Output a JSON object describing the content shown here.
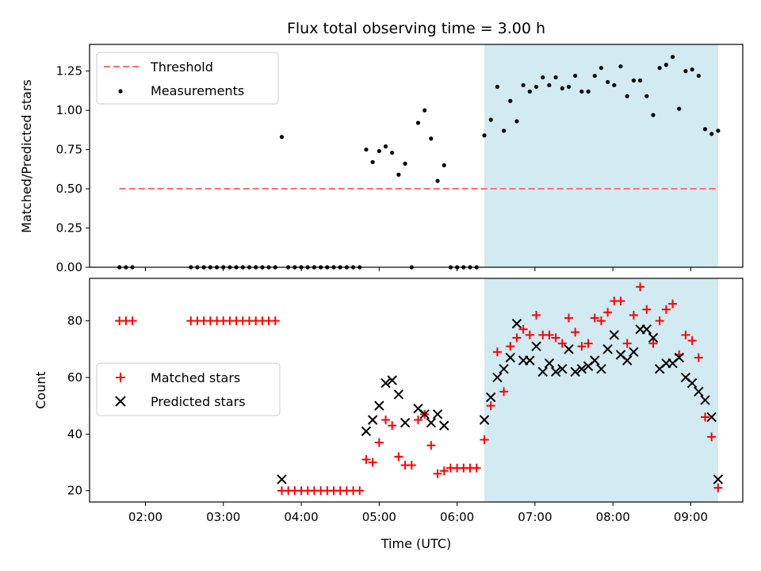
{
  "figure": {
    "title": "Flux total observing time = 3.00 h",
    "xlabel": "Time (UTC)",
    "x_ticks": [
      "02:00",
      "03:00",
      "04:00",
      "05:00",
      "06:00",
      "07:00",
      "08:00",
      "09:00"
    ]
  },
  "chart_data": [
    {
      "type": "scatter",
      "ylabel": "Matched/Predicted stars",
      "xlim": [
        "01:17",
        "09:40"
      ],
      "ylim": [
        0,
        1.42
      ],
      "y_ticks": [
        "0.00",
        "0.25",
        "0.50",
        "0.75",
        "1.00",
        "1.25"
      ],
      "legend": {
        "placement": "top-left",
        "entries": [
          "Threshold",
          "Measurements"
        ]
      },
      "shaded_region": {
        "x_start": "06:21",
        "x_end": "09:21",
        "color": "#add8e6"
      },
      "threshold": {
        "name": "Threshold",
        "y": 0.5,
        "x_start": "01:40",
        "x_end": "09:21",
        "color": "#ff7070"
      },
      "series": [
        {
          "name": "Measurements",
          "color": "#000000",
          "points": [
            [
              "01:40",
              0
            ],
            [
              "01:45",
              0
            ],
            [
              "01:50",
              0
            ],
            [
              "02:35",
              0
            ],
            [
              "02:40",
              0
            ],
            [
              "02:45",
              0
            ],
            [
              "02:50",
              0
            ],
            [
              "02:55",
              0
            ],
            [
              "03:00",
              0
            ],
            [
              "03:05",
              0
            ],
            [
              "03:10",
              0
            ],
            [
              "03:15",
              0
            ],
            [
              "03:20",
              0
            ],
            [
              "03:25",
              0
            ],
            [
              "03:30",
              0
            ],
            [
              "03:35",
              0
            ],
            [
              "03:40",
              0
            ],
            [
              "03:45",
              0.83
            ],
            [
              "03:50",
              0
            ],
            [
              "03:55",
              0
            ],
            [
              "04:00",
              0
            ],
            [
              "04:05",
              0
            ],
            [
              "04:10",
              0
            ],
            [
              "04:15",
              0
            ],
            [
              "04:20",
              0
            ],
            [
              "04:25",
              0
            ],
            [
              "04:30",
              0
            ],
            [
              "04:35",
              0
            ],
            [
              "04:40",
              0
            ],
            [
              "04:45",
              0
            ],
            [
              "04:50",
              0.75
            ],
            [
              "04:55",
              0.67
            ],
            [
              "05:00",
              0.74
            ],
            [
              "05:05",
              0.77
            ],
            [
              "05:10",
              0.73
            ],
            [
              "05:15",
              0.59
            ],
            [
              "05:20",
              0.66
            ],
            [
              "05:25",
              0
            ],
            [
              "05:30",
              0.92
            ],
            [
              "05:35",
              1.0
            ],
            [
              "05:40",
              0.82
            ],
            [
              "05:45",
              0.55
            ],
            [
              "05:50",
              0.65
            ],
            [
              "05:55",
              0
            ],
            [
              "06:00",
              0
            ],
            [
              "06:05",
              0
            ],
            [
              "06:10",
              0
            ],
            [
              "06:15",
              0
            ],
            [
              "06:21",
              0.84
            ],
            [
              "06:26",
              0.94
            ],
            [
              "06:31",
              1.15
            ],
            [
              "06:36",
              0.87
            ],
            [
              "06:41",
              1.06
            ],
            [
              "06:46",
              0.93
            ],
            [
              "06:51",
              1.16
            ],
            [
              "06:56",
              1.12
            ],
            [
              "07:01",
              1.15
            ],
            [
              "07:06",
              1.21
            ],
            [
              "07:11",
              1.16
            ],
            [
              "07:16",
              1.21
            ],
            [
              "07:21",
              1.14
            ],
            [
              "07:26",
              1.15
            ],
            [
              "07:31",
              1.22
            ],
            [
              "07:36",
              1.12
            ],
            [
              "07:41",
              1.12
            ],
            [
              "07:46",
              1.22
            ],
            [
              "07:51",
              1.27
            ],
            [
              "07:56",
              1.18
            ],
            [
              "08:01",
              1.16
            ],
            [
              "08:06",
              1.28
            ],
            [
              "08:11",
              1.09
            ],
            [
              "08:16",
              1.19
            ],
            [
              "08:21",
              1.19
            ],
            [
              "08:26",
              1.09
            ],
            [
              "08:31",
              0.97
            ],
            [
              "08:36",
              1.27
            ],
            [
              "08:41",
              1.29
            ],
            [
              "08:46",
              1.34
            ],
            [
              "08:51",
              1.01
            ],
            [
              "08:56",
              1.25
            ],
            [
              "09:01",
              1.26
            ],
            [
              "09:06",
              1.22
            ],
            [
              "09:11",
              0.88
            ],
            [
              "09:16",
              0.85
            ],
            [
              "09:21",
              0.87
            ]
          ]
        }
      ]
    },
    {
      "type": "scatter",
      "ylabel": "Count",
      "xlim": [
        "01:17",
        "09:40"
      ],
      "ylim": [
        16,
        95
      ],
      "y_ticks": [
        "20",
        "40",
        "60",
        "80"
      ],
      "legend": {
        "placement": "center-left",
        "entries": [
          "Matched stars",
          "Predicted stars"
        ]
      },
      "shaded_region": {
        "x_start": "06:21",
        "x_end": "09:21",
        "color": "#add8e6"
      },
      "series": [
        {
          "name": "Matched stars",
          "marker": "plus",
          "color": "#ff0000",
          "points": [
            [
              "01:40",
              80
            ],
            [
              "01:45",
              80
            ],
            [
              "01:50",
              80
            ],
            [
              "02:35",
              80
            ],
            [
              "02:40",
              80
            ],
            [
              "02:45",
              80
            ],
            [
              "02:50",
              80
            ],
            [
              "02:55",
              80
            ],
            [
              "03:00",
              80
            ],
            [
              "03:05",
              80
            ],
            [
              "03:10",
              80
            ],
            [
              "03:15",
              80
            ],
            [
              "03:20",
              80
            ],
            [
              "03:25",
              80
            ],
            [
              "03:30",
              80
            ],
            [
              "03:35",
              80
            ],
            [
              "03:40",
              80
            ],
            [
              "03:45",
              20
            ],
            [
              "03:50",
              20
            ],
            [
              "03:55",
              20
            ],
            [
              "04:00",
              20
            ],
            [
              "04:05",
              20
            ],
            [
              "04:10",
              20
            ],
            [
              "04:15",
              20
            ],
            [
              "04:20",
              20
            ],
            [
              "04:25",
              20
            ],
            [
              "04:30",
              20
            ],
            [
              "04:35",
              20
            ],
            [
              "04:40",
              20
            ],
            [
              "04:45",
              20
            ],
            [
              "04:50",
              31
            ],
            [
              "04:55",
              30
            ],
            [
              "05:00",
              37
            ],
            [
              "05:05",
              45
            ],
            [
              "05:10",
              43
            ],
            [
              "05:15",
              32
            ],
            [
              "05:20",
              29
            ],
            [
              "05:25",
              29
            ],
            [
              "05:30",
              45
            ],
            [
              "05:35",
              47
            ],
            [
              "05:40",
              36
            ],
            [
              "05:45",
              26
            ],
            [
              "05:50",
              27
            ],
            [
              "05:55",
              28
            ],
            [
              "06:00",
              28
            ],
            [
              "06:05",
              28
            ],
            [
              "06:10",
              28
            ],
            [
              "06:15",
              28
            ],
            [
              "06:21",
              38
            ],
            [
              "06:26",
              50
            ],
            [
              "06:31",
              69
            ],
            [
              "06:36",
              55
            ],
            [
              "06:41",
              71
            ],
            [
              "06:46",
              74
            ],
            [
              "06:51",
              77
            ],
            [
              "06:56",
              75
            ],
            [
              "07:01",
              82
            ],
            [
              "07:06",
              75
            ],
            [
              "07:11",
              75
            ],
            [
              "07:16",
              74
            ],
            [
              "07:21",
              72
            ],
            [
              "07:26",
              81
            ],
            [
              "07:31",
              76
            ],
            [
              "07:36",
              71
            ],
            [
              "07:41",
              72
            ],
            [
              "07:46",
              81
            ],
            [
              "07:51",
              80
            ],
            [
              "07:56",
              83
            ],
            [
              "08:01",
              87
            ],
            [
              "08:06",
              87
            ],
            [
              "08:11",
              72
            ],
            [
              "08:16",
              82
            ],
            [
              "08:21",
              92
            ],
            [
              "08:26",
              84
            ],
            [
              "08:31",
              72
            ],
            [
              "08:36",
              80
            ],
            [
              "08:41",
              84
            ],
            [
              "08:46",
              86
            ],
            [
              "08:51",
              68
            ],
            [
              "08:56",
              75
            ],
            [
              "09:01",
              73
            ],
            [
              "09:06",
              67
            ],
            [
              "09:11",
              46
            ],
            [
              "09:16",
              39
            ],
            [
              "09:21",
              21
            ]
          ]
        },
        {
          "name": "Predicted stars",
          "marker": "x",
          "color": "#000000",
          "points": [
            [
              "03:45",
              24
            ],
            [
              "04:50",
              41
            ],
            [
              "04:55",
              45
            ],
            [
              "05:00",
              50
            ],
            [
              "05:05",
              58
            ],
            [
              "05:10",
              59
            ],
            [
              "05:15",
              54
            ],
            [
              "05:20",
              44
            ],
            [
              "05:30",
              49
            ],
            [
              "05:35",
              47
            ],
            [
              "05:40",
              44
            ],
            [
              "05:45",
              47
            ],
            [
              "05:50",
              43
            ],
            [
              "06:21",
              45
            ],
            [
              "06:26",
              53
            ],
            [
              "06:31",
              60
            ],
            [
              "06:36",
              63
            ],
            [
              "06:41",
              67
            ],
            [
              "06:46",
              79
            ],
            [
              "06:51",
              66
            ],
            [
              "06:56",
              66
            ],
            [
              "07:01",
              71
            ],
            [
              "07:06",
              62
            ],
            [
              "07:11",
              65
            ],
            [
              "07:16",
              62
            ],
            [
              "07:21",
              63
            ],
            [
              "07:26",
              70
            ],
            [
              "07:31",
              62
            ],
            [
              "07:36",
              63
            ],
            [
              "07:41",
              64
            ],
            [
              "07:46",
              66
            ],
            [
              "07:51",
              63
            ],
            [
              "07:56",
              70
            ],
            [
              "08:01",
              75
            ],
            [
              "08:06",
              68
            ],
            [
              "08:11",
              66
            ],
            [
              "08:16",
              69
            ],
            [
              "08:21",
              77
            ],
            [
              "08:26",
              77
            ],
            [
              "08:31",
              74
            ],
            [
              "08:36",
              63
            ],
            [
              "08:41",
              65
            ],
            [
              "08:46",
              65
            ],
            [
              "08:51",
              67
            ],
            [
              "08:56",
              60
            ],
            [
              "09:01",
              58
            ],
            [
              "09:06",
              55
            ],
            [
              "09:11",
              52
            ],
            [
              "09:16",
              46
            ],
            [
              "09:21",
              24
            ]
          ]
        }
      ]
    }
  ]
}
